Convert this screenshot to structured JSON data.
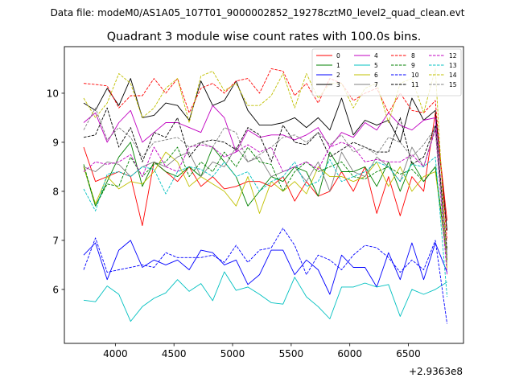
{
  "chart_data": {
    "type": "line",
    "suptitle": "Data file: modeM0/AS1A05_107T01_9000002852_19278cztM0_level2_quad_clean.evt",
    "title": "Quadrant 3 module wise count rates with 100.0s bins.",
    "xlabel": "",
    "ylabel": "",
    "x_offset_label": "+2.9363e8",
    "xlim": [
      3565,
      6970
    ],
    "ylim": [
      4.9,
      10.95
    ],
    "x_ticks": [
      {
        "value": 4000,
        "label": "4000"
      },
      {
        "value": 4500,
        "label": "4500"
      },
      {
        "value": 5000,
        "label": "5000"
      },
      {
        "value": 5500,
        "label": "5500"
      },
      {
        "value": 6000,
        "label": "6000"
      },
      {
        "value": 6500,
        "label": "6500"
      }
    ],
    "y_ticks": [
      {
        "value": 6,
        "label": "6"
      },
      {
        "value": 7,
        "label": "7"
      },
      {
        "value": 8,
        "label": "8"
      },
      {
        "value": 9,
        "label": "9"
      },
      {
        "value": 10,
        "label": "10"
      }
    ],
    "x": [
      3730,
      3830,
      3930,
      4030,
      4130,
      4230,
      4330,
      4430,
      4530,
      4630,
      4730,
      4830,
      4930,
      5030,
      5130,
      5230,
      5330,
      5430,
      5530,
      5630,
      5730,
      5830,
      5930,
      6030,
      6130,
      6230,
      6330,
      6430,
      6530,
      6630,
      6730,
      6830
    ],
    "series": [
      {
        "name": "0",
        "color": "#ff0000",
        "dash": "solid",
        "values": [
          8.9,
          8.2,
          8.3,
          8.4,
          8.3,
          7.3,
          8.6,
          8.4,
          8.2,
          8.5,
          8.1,
          8.3,
          8.05,
          8.1,
          8.2,
          8.2,
          8.1,
          8.3,
          7.8,
          8.2,
          7.9,
          8.0,
          8.4,
          8.0,
          8.5,
          7.55,
          8.3,
          7.5,
          8.3,
          8.0,
          9.6,
          7.4
        ]
      },
      {
        "name": "1",
        "color": "#008000",
        "dash": "solid",
        "values": [
          8.5,
          7.7,
          8.2,
          8.7,
          9.0,
          8.1,
          8.6,
          8.4,
          8.3,
          8.5,
          8.3,
          8.9,
          8.6,
          8.3,
          7.7,
          8.0,
          8.3,
          8.2,
          8.5,
          8.4,
          7.9,
          8.8,
          8.4,
          8.4,
          8.5,
          8.1,
          8.6,
          8.0,
          8.6,
          8.2,
          8.5,
          6.6
        ]
      },
      {
        "name": "2",
        "color": "#0000ff",
        "dash": "solid",
        "values": [
          6.7,
          6.95,
          6.2,
          6.8,
          7.0,
          6.45,
          6.6,
          6.5,
          6.6,
          6.4,
          6.8,
          6.75,
          6.5,
          6.6,
          6.1,
          6.3,
          6.8,
          6.8,
          6.3,
          6.6,
          6.4,
          5.9,
          6.7,
          6.45,
          6.45,
          6.05,
          6.75,
          6.2,
          6.95,
          6.2,
          6.95,
          6.35
        ]
      },
      {
        "name": "3",
        "color": "#000000",
        "dash": "solid",
        "values": [
          9.8,
          9.65,
          10.1,
          9.75,
          10.3,
          9.5,
          9.55,
          9.8,
          9.75,
          9.45,
          10.25,
          9.75,
          9.85,
          10.25,
          9.65,
          9.35,
          9.35,
          9.4,
          9.5,
          9.3,
          9.5,
          9.25,
          9.9,
          9.15,
          9.45,
          9.35,
          9.45,
          9.0,
          9.9,
          9.45,
          9.65,
          7.2
        ]
      },
      {
        "name": "4",
        "color": "#c000c0",
        "dash": "solid",
        "values": [
          9.4,
          9.6,
          9.0,
          9.4,
          9.65,
          9.0,
          9.2,
          9.4,
          9.4,
          9.3,
          9.2,
          9.75,
          9.5,
          8.8,
          9.25,
          9.1,
          9.15,
          9.15,
          9.05,
          9.15,
          9.3,
          8.9,
          9.2,
          9.1,
          9.4,
          9.25,
          9.6,
          9.35,
          9.25,
          9.45,
          9.5,
          6.6
        ]
      },
      {
        "name": "5",
        "color": "#00c0c0",
        "dash": "solid",
        "values": [
          5.78,
          5.75,
          6.07,
          5.9,
          5.35,
          5.65,
          5.82,
          5.93,
          6.2,
          5.96,
          6.12,
          5.77,
          6.36,
          5.98,
          6.05,
          5.9,
          5.73,
          5.7,
          6.25,
          5.85,
          5.65,
          5.4,
          6.05,
          6.05,
          6.13,
          6.05,
          6.1,
          5.45,
          6.0,
          5.9,
          6.0,
          6.15
        ]
      },
      {
        "name": "6",
        "color": "#c0c000",
        "dash": "solid",
        "values": [
          8.5,
          7.75,
          8.3,
          8.05,
          8.2,
          8.15,
          8.4,
          8.8,
          8.6,
          8.1,
          8.3,
          8.15,
          8.0,
          7.7,
          8.3,
          7.55,
          8.2,
          8.0,
          8.2,
          7.95,
          8.5,
          8.3,
          8.3,
          8.2,
          8.3,
          8.6,
          8.1,
          8.5,
          8.0,
          8.3,
          8.4,
          6.6
        ]
      },
      {
        "name": "7",
        "color": "#808080",
        "dash": "solid",
        "values": [
          8.5,
          8.4,
          8.6,
          8.55,
          8.3,
          8.5,
          8.6,
          8.5,
          8.7,
          8.8,
          8.3,
          8.6,
          8.5,
          8.9,
          8.6,
          8.7,
          8.3,
          8.4,
          8.5,
          8.2,
          8.6,
          8.0,
          8.8,
          8.4,
          8.3,
          8.7,
          8.5,
          8.2,
          8.9,
          8.5,
          9.3,
          6.7
        ]
      },
      {
        "name": "8",
        "color": "#ff0000",
        "dash": "dashed",
        "values": [
          10.2,
          10.18,
          10.15,
          9.7,
          9.95,
          9.95,
          10.3,
          10.0,
          10.3,
          9.6,
          10.1,
          10.2,
          10.0,
          10.25,
          10.3,
          10.0,
          10.5,
          10.45,
          9.95,
          10.2,
          9.8,
          10.3,
          10.2,
          9.85,
          10.0,
          10.1,
          9.6,
          10.0,
          9.65,
          9.6,
          9.85,
          7.0
        ]
      },
      {
        "name": "9",
        "color": "#008000",
        "dash": "dashed",
        "values": [
          8.55,
          7.7,
          8.15,
          8.1,
          8.7,
          8.3,
          8.55,
          8.6,
          8.9,
          8.3,
          8.6,
          8.4,
          8.8,
          8.5,
          8.9,
          8.6,
          8.55,
          8.0,
          8.4,
          8.6,
          8.4,
          8.5,
          8.6,
          8.3,
          8.25,
          8.4,
          8.5,
          8.35,
          8.45,
          8.2,
          8.5,
          6.6
        ]
      },
      {
        "name": "10",
        "color": "#0000ff",
        "dash": "dashed",
        "values": [
          6.4,
          7.05,
          6.35,
          6.4,
          6.45,
          6.5,
          6.45,
          6.75,
          6.65,
          6.65,
          6.65,
          6.7,
          6.55,
          6.9,
          6.55,
          6.8,
          6.85,
          7.25,
          6.9,
          6.3,
          6.7,
          6.6,
          6.4,
          6.7,
          6.9,
          6.85,
          6.65,
          6.35,
          6.6,
          6.4,
          7.0,
          5.3
        ]
      },
      {
        "name": "11",
        "color": "#000000",
        "dash": "dashed",
        "values": [
          9.1,
          9.15,
          9.7,
          8.9,
          9.3,
          8.6,
          9.2,
          9.1,
          9.5,
          8.7,
          9.0,
          9.05,
          9.0,
          8.85,
          9.3,
          9.15,
          8.6,
          9.35,
          9.0,
          8.95,
          9.2,
          8.7,
          8.85,
          9.0,
          8.9,
          8.8,
          8.8,
          9.5,
          8.55,
          8.7,
          9.35,
          6.8
        ]
      },
      {
        "name": "12",
        "color": "#c000c0",
        "dash": "dashed",
        "values": [
          8.4,
          8.6,
          8.55,
          8.6,
          8.75,
          8.3,
          8.9,
          8.5,
          8.4,
          8.9,
          8.95,
          8.9,
          8.7,
          8.8,
          8.95,
          8.8,
          8.9,
          8.4,
          8.5,
          8.6,
          8.45,
          8.9,
          9.0,
          8.9,
          8.6,
          8.65,
          8.6,
          8.6,
          8.75,
          8.5,
          9.25,
          6.3
        ]
      },
      {
        "name": "13",
        "color": "#00c0c0",
        "dash": "dashed",
        "values": [
          8.05,
          7.6,
          8.35,
          8.4,
          8.3,
          8.5,
          8.45,
          7.95,
          8.4,
          8.5,
          8.45,
          8.3,
          8.6,
          8.3,
          8.4,
          8.0,
          8.2,
          8.3,
          8.6,
          8.1,
          8.2,
          8.65,
          8.2,
          8.3,
          8.4,
          8.6,
          8.5,
          8.2,
          8.55,
          8.5,
          8.7,
          5.85
        ]
      },
      {
        "name": "14",
        "color": "#c0c000",
        "dash": "dashed",
        "values": [
          9.9,
          9.5,
          9.8,
          10.4,
          10.2,
          9.5,
          9.7,
          10.1,
          10.3,
          9.4,
          10.35,
          10.45,
          10.05,
          10.2,
          9.75,
          9.75,
          9.95,
          10.4,
          9.7,
          10.4,
          9.9,
          10.2,
          10.2,
          9.7,
          10.1,
          10.2,
          9.4,
          10.2,
          10.3,
          9.6,
          10.5,
          6.4
        ]
      },
      {
        "name": "15",
        "color": "#808080",
        "dash": "dashed",
        "values": [
          9.25,
          9.7,
          9.05,
          9.3,
          9.1,
          8.7,
          9.0,
          9.05,
          9.1,
          8.9,
          9.0,
          8.9,
          9.3,
          9.2,
          8.6,
          8.75,
          8.9,
          9.1,
          9.15,
          9.0,
          9.2,
          8.95,
          9.15,
          8.8,
          8.9,
          8.75,
          9.1,
          9.0,
          8.7,
          8.95,
          9.3,
          6.5
        ]
      }
    ],
    "legend": {
      "placement": "top-right",
      "columns": 4
    }
  }
}
